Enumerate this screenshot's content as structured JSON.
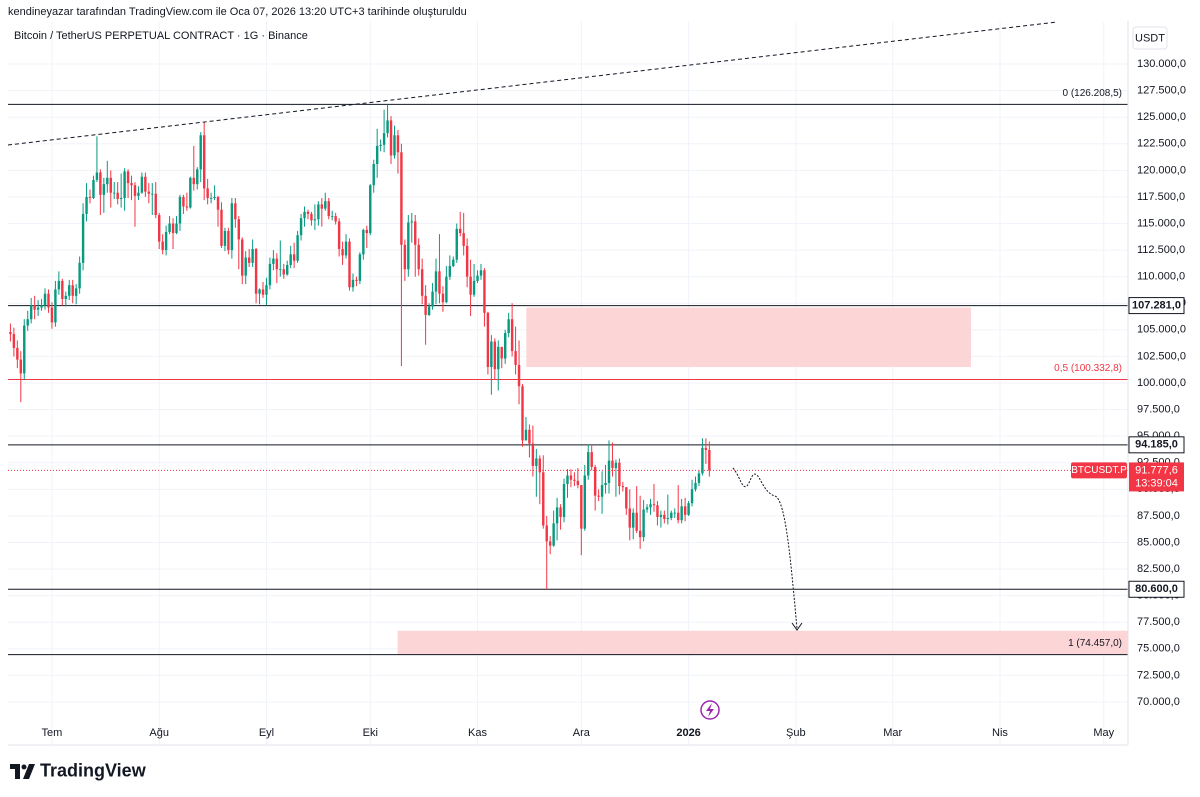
{
  "header": {
    "credit": "kendineyazar tarafından TradingView.com ile Oca 07, 2026 13:20 UTC+3 tarihinde oluşturuldu",
    "logo": "TradingView"
  },
  "chart_data": {
    "type": "candlestick",
    "title": "Bitcoin / TetherUS PERPETUAL CONTRACT · 1G · Binance",
    "currency": "USDT",
    "up_color": "#089981",
    "down_color": "#f23645",
    "grid": true,
    "xlim": [
      -0.7,
      323
    ],
    "xticks": [
      {
        "value": 12,
        "label": "Tem"
      },
      {
        "value": 43,
        "label": "Ağu"
      },
      {
        "value": 74,
        "label": "Eyl"
      },
      {
        "value": 104,
        "label": "Eki"
      },
      {
        "value": 135,
        "label": "Kas"
      },
      {
        "value": 165,
        "label": "Ara"
      },
      {
        "value": 196,
        "label": "2026"
      },
      {
        "value": 227,
        "label": "Şub"
      },
      {
        "value": 255,
        "label": "Mar"
      },
      {
        "value": 286,
        "label": "Nis"
      },
      {
        "value": 316,
        "label": "May"
      }
    ],
    "ylim": [
      66000,
      134000
    ],
    "yticks": [
      {
        "value": 70000,
        "label": "70.000,0"
      },
      {
        "value": 72500,
        "label": "72.500,0"
      },
      {
        "value": 75000,
        "label": "75.000,0"
      },
      {
        "value": 77500,
        "label": "77.500,0"
      },
      {
        "value": 80000,
        "label": "80.000,0"
      },
      {
        "value": 82500,
        "label": "82.500,0"
      },
      {
        "value": 85000,
        "label": "85.000,0"
      },
      {
        "value": 87500,
        "label": "87.500,0"
      },
      {
        "value": 90000,
        "label": "90.000,0"
      },
      {
        "value": 92500,
        "label": "92.500,0"
      },
      {
        "value": 95000,
        "label": "95.000,0"
      },
      {
        "value": 97500,
        "label": "97.500,0"
      },
      {
        "value": 100000,
        "label": "100.000,0"
      },
      {
        "value": 102500,
        "label": "102.500,0"
      },
      {
        "value": 105000,
        "label": "105.000,0"
      },
      {
        "value": 107500,
        "label": "107.500,0"
      },
      {
        "value": 110000,
        "label": "110.000,0"
      },
      {
        "value": 112500,
        "label": "112.500,0"
      },
      {
        "value": 115000,
        "label": "115.000,0"
      },
      {
        "value": 117500,
        "label": "117.500,0"
      },
      {
        "value": 120000,
        "label": "120.000,0"
      },
      {
        "value": 122500,
        "label": "122.500,0"
      },
      {
        "value": 125000,
        "label": "125.000,0"
      },
      {
        "value": 127500,
        "label": "127.500,0"
      },
      {
        "value": 130000,
        "label": "130.000,0"
      }
    ],
    "open": [
      104800,
      104600,
      103300,
      102200,
      100900,
      105400,
      106000,
      107300,
      106900,
      107100,
      107300,
      108400,
      107100,
      105700,
      108800,
      109600,
      107900,
      108200,
      109200,
      108200,
      108900,
      111300,
      115900,
      117500,
      117400,
      119100,
      119800,
      117700,
      118700,
      119300,
      117900,
      117900,
      117300,
      117400,
      119900,
      118800,
      118600,
      117600,
      117900,
      119400,
      118000,
      117800,
      117800,
      115800,
      113300,
      112500,
      114200,
      115000,
      114100,
      115000,
      117500,
      116600,
      116500,
      119300,
      118700,
      120100,
      123300,
      118300,
      117400,
      117400,
      117500,
      116300,
      112900,
      114300,
      112500,
      116900,
      115400,
      113500,
      110100,
      111800,
      111300,
      112600,
      108400,
      108800,
      108300,
      109200,
      111200,
      111700,
      110700,
      110700,
      110200,
      111100,
      112100,
      111500,
      113900,
      115500,
      116100,
      115900,
      115300,
      115400,
      116800,
      116400,
      117100,
      115700,
      115700,
      115200,
      112600,
      112000,
      113300,
      109000,
      109700,
      109600,
      112100,
      114400,
      114100,
      118600,
      120600,
      122300,
      122400,
      123500,
      124700,
      121400,
      123300,
      121700,
      113000,
      110700,
      115100,
      115200,
      113000,
      110700,
      108200,
      106400,
      107200,
      108600,
      110500,
      108400,
      107600,
      110000,
      111000,
      111600,
      114500,
      114100,
      112900,
      110000,
      108300,
      109600,
      110100,
      110600,
      106600,
      101500,
      103900,
      101300,
      103400,
      102300,
      104700,
      106000,
      103000,
      101700,
      99700,
      94600,
      95600,
      94300,
      92200,
      92900,
      91600,
      86600,
      85100,
      84700,
      86800,
      88300,
      87400,
      90500,
      91300,
      90900,
      90800,
      90400,
      86300,
      91300,
      93500,
      92100,
      89400,
      89300,
      90400,
      90600,
      92700,
      92000,
      92500,
      90300,
      90200,
      88200,
      86400,
      87800,
      86100,
      85500,
      88100,
      88300,
      88600,
      88500,
      87400,
      87600,
      87200,
      87300,
      87800,
      87800,
      87100,
      88400,
      87600,
      88700,
      90000,
      90600,
      91500,
      93900,
      93700
    ],
    "high": [
      105600,
      105200,
      104000,
      103000,
      106000,
      106800,
      108000,
      108200,
      107800,
      107900,
      108900,
      108800,
      107600,
      109600,
      110500,
      109800,
      108600,
      109700,
      109700,
      109300,
      111900,
      116900,
      118800,
      118200,
      119500,
      123200,
      120100,
      119300,
      120900,
      120000,
      118900,
      118900,
      119700,
      120200,
      120100,
      119500,
      118900,
      118500,
      119800,
      119800,
      118800,
      118800,
      118900,
      116000,
      114000,
      114800,
      115700,
      115500,
      115700,
      117700,
      117700,
      117900,
      119400,
      122300,
      120300,
      123600,
      124500,
      119200,
      117900,
      118600,
      117600,
      117000,
      114600,
      114600,
      117400,
      117400,
      115700,
      113700,
      112400,
      112600,
      113500,
      112700,
      108900,
      109500,
      109900,
      111800,
      112500,
      112200,
      113400,
      111200,
      111500,
      112900,
      113200,
      114300,
      115900,
      116600,
      116300,
      116100,
      116800,
      117100,
      117400,
      117900,
      117400,
      116200,
      116000,
      115500,
      113300,
      114000,
      113600,
      110300,
      110000,
      112300,
      114500,
      114800,
      118700,
      121000,
      123900,
      122900,
      125700,
      126200,
      125100,
      124200,
      123800,
      122500,
      113500,
      115800,
      116000,
      115800,
      113600,
      111700,
      109200,
      107500,
      109400,
      111700,
      114000,
      109100,
      111000,
      112000,
      111900,
      115000,
      116100,
      116000,
      113600,
      111600,
      111200,
      110600,
      111200,
      110800,
      106700,
      104500,
      104200,
      104000,
      103400,
      105000,
      106600,
      107500,
      105300,
      104000,
      99900,
      96800,
      96100,
      96000,
      93800,
      93200,
      93200,
      87500,
      85600,
      88000,
      89200,
      88600,
      91000,
      91900,
      91900,
      91600,
      92000,
      90400,
      92300,
      94200,
      94100,
      92300,
      90000,
      91700,
      92300,
      94600,
      94400,
      92800,
      92900,
      90700,
      90200,
      90000,
      88200,
      90300,
      89400,
      89000,
      88600,
      89100,
      90500,
      88900,
      88000,
      88000,
      89500,
      88000,
      88200,
      90400,
      89100,
      89200,
      88900,
      90900,
      91200,
      91800,
      94800,
      94800,
      94500
    ],
    "low": [
      103900,
      102500,
      101400,
      98200,
      100300,
      104900,
      105600,
      106000,
      106300,
      106800,
      106900,
      106600,
      105100,
      105300,
      108300,
      107300,
      107200,
      107800,
      107500,
      107400,
      108400,
      110600,
      115200,
      116900,
      117300,
      118900,
      115800,
      116000,
      117900,
      116500,
      117300,
      116800,
      116500,
      116200,
      117400,
      117200,
      114700,
      117200,
      117800,
      117500,
      116900,
      115800,
      115500,
      112600,
      112100,
      112000,
      114000,
      112600,
      114000,
      114300,
      115900,
      116200,
      116400,
      118100,
      118200,
      118900,
      117200,
      116800,
      116900,
      117200,
      114700,
      112700,
      112400,
      112100,
      111700,
      114600,
      110700,
      109300,
      109300,
      110900,
      110900,
      107500,
      107400,
      108000,
      107300,
      108800,
      110600,
      109400,
      110000,
      109800,
      110100,
      110800,
      110800,
      111300,
      113400,
      114700,
      115400,
      114800,
      114400,
      114800,
      114700,
      116200,
      115400,
      115300,
      114900,
      111900,
      111100,
      111700,
      108700,
      108600,
      109100,
      109300,
      111600,
      112700,
      113900,
      117900,
      119300,
      121800,
      121700,
      123100,
      120600,
      121100,
      119700,
      101600,
      109600,
      110000,
      113200,
      110000,
      110100,
      107400,
      103600,
      106300,
      106900,
      107400,
      107500,
      106700,
      107500,
      109700,
      110900,
      111300,
      113800,
      112000,
      109000,
      106300,
      108100,
      109400,
      109700,
      105300,
      100800,
      98900,
      100300,
      99300,
      101400,
      101800,
      104300,
      102500,
      100800,
      98000,
      94000,
      94600,
      93000,
      91200,
      89300,
      88600,
      86300,
      80600,
      83900,
      84600,
      85200,
      86200,
      86900,
      89200,
      90200,
      90300,
      90100,
      83800,
      86100,
      90900,
      91800,
      88000,
      88900,
      87700,
      89600,
      89600,
      91200,
      89300,
      89500,
      89800,
      87600,
      85200,
      85300,
      85900,
      84400,
      85100,
      87800,
      87600,
      87900,
      86600,
      86400,
      86800,
      86700,
      87100,
      87300,
      86800,
      86800,
      87000,
      87500,
      88400,
      89800,
      90300,
      91300,
      92400,
      91200
    ],
    "close": [
      104600,
      103300,
      102200,
      100900,
      105400,
      106000,
      107300,
      106900,
      107100,
      107300,
      108400,
      107100,
      105700,
      108800,
      109600,
      107900,
      108200,
      109200,
      108200,
      108900,
      111300,
      115900,
      117500,
      117400,
      119100,
      119800,
      117700,
      118700,
      119300,
      117900,
      117900,
      117300,
      117400,
      119900,
      118800,
      118600,
      117600,
      117900,
      119400,
      118000,
      117800,
      117800,
      115800,
      113300,
      112500,
      114200,
      115000,
      114100,
      115000,
      117500,
      116600,
      116500,
      119300,
      118700,
      120100,
      123300,
      118300,
      117400,
      117400,
      117500,
      116300,
      112900,
      114300,
      112500,
      116900,
      115400,
      113500,
      110100,
      111800,
      111300,
      112600,
      108400,
      108800,
      108300,
      109200,
      111200,
      111700,
      110700,
      110700,
      110200,
      111100,
      112100,
      111500,
      113900,
      115500,
      116100,
      115900,
      115300,
      115400,
      116800,
      116400,
      117100,
      115700,
      115700,
      115200,
      112600,
      112000,
      113300,
      109000,
      109700,
      109600,
      112100,
      114400,
      114100,
      118600,
      120600,
      122300,
      122400,
      123500,
      124700,
      121400,
      123300,
      121700,
      113000,
      110700,
      115100,
      115200,
      113000,
      110700,
      108200,
      106400,
      107200,
      108600,
      110500,
      108400,
      107600,
      110000,
      111000,
      111600,
      114500,
      114100,
      112900,
      110000,
      108300,
      109600,
      110100,
      110600,
      106600,
      101500,
      103900,
      101300,
      103400,
      102300,
      104700,
      106000,
      103000,
      101700,
      99700,
      94600,
      95600,
      94300,
      92200,
      92900,
      91600,
      86600,
      85100,
      84700,
      86800,
      88300,
      87400,
      90500,
      91300,
      90900,
      90800,
      90400,
      86300,
      91300,
      93500,
      92100,
      89400,
      89300,
      90400,
      90600,
      92700,
      92000,
      92500,
      90300,
      90200,
      88200,
      86400,
      87800,
      86100,
      85500,
      88100,
      88300,
      88600,
      88500,
      87400,
      87600,
      87200,
      87300,
      87800,
      87800,
      87100,
      88400,
      87600,
      88700,
      90000,
      90600,
      91500,
      93900,
      93700,
      91777.6
    ],
    "last_price": {
      "value": 91777.6,
      "label": "91.777,6",
      "symbol": "BTCUSDT.P",
      "countdown": "13:39:04",
      "color": "#f23645"
    },
    "fib_levels": [
      {
        "value": 126208.5,
        "label": "0 (126.208,5)",
        "color": "#131722"
      },
      {
        "value": 100332.8,
        "label": "0,5 (100.332,8)",
        "color": "#f23645"
      },
      {
        "value": 74457,
        "label": "1 (74.457,0)",
        "color": "#131722"
      }
    ],
    "price_lines": [
      {
        "value": 107281,
        "label": "107.281,0"
      },
      {
        "value": 94185,
        "label": "94.185,0"
      },
      {
        "value": 80600,
        "label": "80.600,0"
      }
    ],
    "zones": [
      {
        "x": [
          149.1,
          277.6
        ],
        "y": [
          101500,
          107100
        ]
      },
      {
        "x": [
          111.9,
          323
        ],
        "y": [
          74457,
          76700
        ]
      }
    ],
    "zone_color": "#fcd5d7",
    "trendline": {
      "x": [
        -0.7,
        302.4
      ],
      "y": [
        122383,
        133950
      ]
    }
  }
}
